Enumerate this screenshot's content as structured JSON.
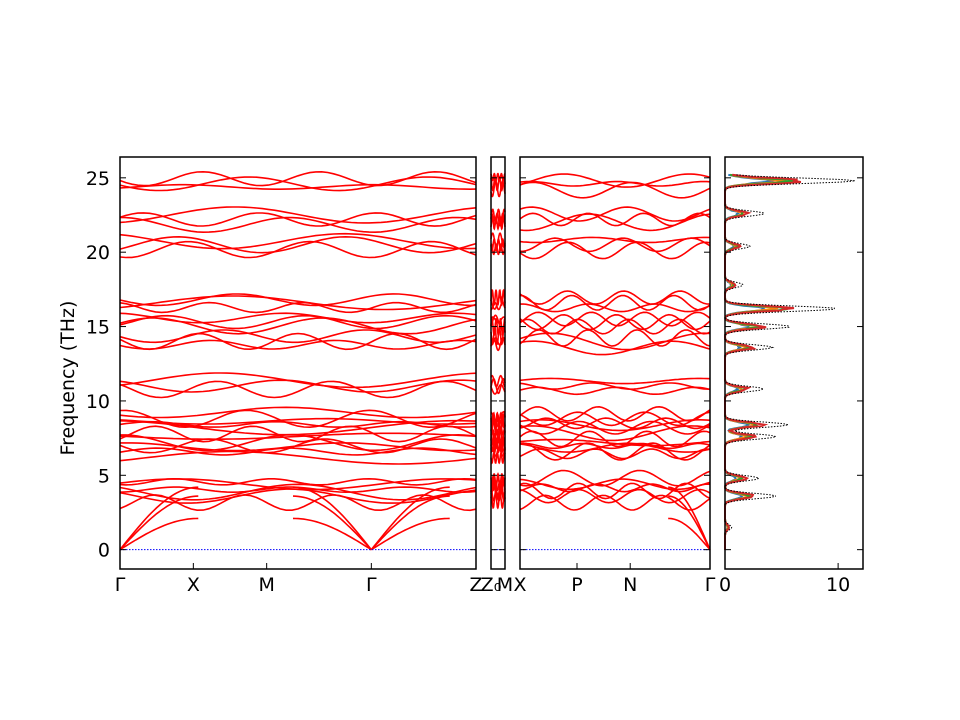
{
  "chart_data": {
    "type": "line",
    "ylabel": "Frequency (THz)",
    "ylim": [
      -1.3,
      26.4
    ],
    "y_ticks": [
      0,
      5,
      10,
      15,
      20,
      25
    ],
    "colors": {
      "band": "#ff0000",
      "zero_line": "#0000ff",
      "dos_total": "#000000",
      "dos_parts": [
        "#1f77b4",
        "#ff7f0e",
        "#2ca02c",
        "#d62728"
      ]
    },
    "band_panels": [
      {
        "labels": [
          {
            "x": 0.0,
            "text": "Γ"
          },
          {
            "x": 0.206,
            "text": "X"
          },
          {
            "x": 0.412,
            "text": "M"
          },
          {
            "x": 0.706,
            "text": "Γ"
          },
          {
            "x": 1.0,
            "text": "Z"
          }
        ]
      },
      {
        "labels": [
          {
            "x": 0.0,
            "text": "Z₀"
          },
          {
            "x": 1.0,
            "text": "M"
          }
        ]
      },
      {
        "labels": [
          {
            "x": 0.0,
            "text": "X"
          },
          {
            "x": 0.3,
            "text": "P"
          },
          {
            "x": 0.58,
            "text": "N"
          },
          {
            "x": 1.0,
            "text": "Γ"
          }
        ]
      }
    ],
    "band_flat_levels": [
      24.6,
      22.2,
      20.5,
      16.6,
      15.3,
      14.0,
      11.0,
      8.8,
      8.2,
      7.2,
      6.6,
      4.4,
      3.6
    ],
    "dos_panel": {
      "xlim": [
        0,
        12.2
      ],
      "x_ticks": [
        0,
        10
      ],
      "total_peaks": [
        {
          "f": 24.8,
          "v": 11.5
        },
        {
          "f": 22.6,
          "v": 3.5
        },
        {
          "f": 20.4,
          "v": 2.2
        },
        {
          "f": 17.8,
          "v": 1.6
        },
        {
          "f": 16.2,
          "v": 9.9
        },
        {
          "f": 15.0,
          "v": 5.8
        },
        {
          "f": 13.6,
          "v": 4.2
        },
        {
          "f": 10.8,
          "v": 3.4
        },
        {
          "f": 8.4,
          "v": 5.6
        },
        {
          "f": 7.6,
          "v": 4.5
        },
        {
          "f": 4.8,
          "v": 3.0
        },
        {
          "f": 3.6,
          "v": 4.5
        },
        {
          "f": 1.5,
          "v": 0.6
        }
      ]
    }
  }
}
